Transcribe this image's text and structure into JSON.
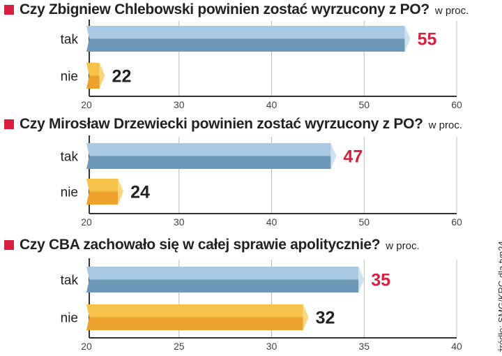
{
  "chart_data": [
    {
      "type": "bar",
      "title": "Czy Zbigniew Chlebowski powinien zostać wyrzucony z PO?",
      "unit": "w proc.",
      "categories": [
        "tak",
        "nie"
      ],
      "values": [
        55,
        22
      ],
      "xlim": [
        20,
        60
      ],
      "ticks": [
        20,
        30,
        40,
        50,
        60
      ]
    },
    {
      "type": "bar",
      "title": "Czy Mirosław Drzewiecki powinien zostać wyrzucony z PO?",
      "unit": "w proc.",
      "categories": [
        "tak",
        "nie"
      ],
      "values": [
        47,
        24
      ],
      "xlim": [
        20,
        60
      ],
      "ticks": [
        20,
        30,
        40,
        50,
        60
      ]
    },
    {
      "type": "bar",
      "title": "Czy CBA zachowało się w całej sprawie apolitycznie?",
      "unit": "w proc.",
      "categories": [
        "tak",
        "nie"
      ],
      "values": [
        35,
        32
      ],
      "xlim": [
        20,
        40
      ],
      "ticks": [
        20,
        25,
        30,
        35,
        40
      ]
    }
  ],
  "source": "źródło: SMG/KRC dla tvn24",
  "colors": {
    "accent": "#d7203f",
    "blue_top": "#a9c9e2",
    "blue_bottom": "#6d98b7",
    "blue_tip": "#cfe1ef",
    "orange_top": "#f6c24c",
    "orange_bottom": "#eca22c",
    "orange_tip": "#f9d77f",
    "value_dark": "#222222"
  }
}
